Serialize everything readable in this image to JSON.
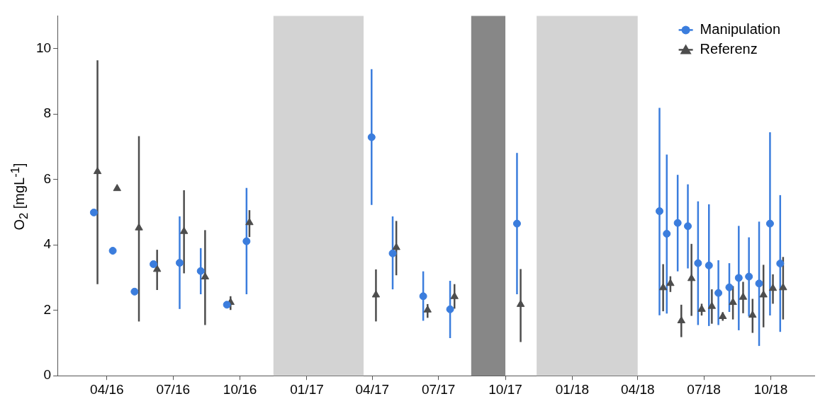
{
  "chart_data": {
    "type": "scatter",
    "ylabel": "O$_{2}$ [mgL$^{-1}$]",
    "xlim": [
      "2016-01-24",
      "2018-11-30"
    ],
    "ylim": [
      0,
      11
    ],
    "yticks": [
      0,
      2,
      4,
      6,
      8,
      10
    ],
    "xticks": [
      {
        "value": "2016-04-01",
        "label": "04/16"
      },
      {
        "value": "2016-07-01",
        "label": "07/16"
      },
      {
        "value": "2016-10-01",
        "label": "10/16"
      },
      {
        "value": "2017-01-01",
        "label": "01/17"
      },
      {
        "value": "2017-04-01",
        "label": "04/17"
      },
      {
        "value": "2017-07-01",
        "label": "07/17"
      },
      {
        "value": "2017-10-01",
        "label": "10/17"
      },
      {
        "value": "2018-01-01",
        "label": "01/18"
      },
      {
        "value": "2018-04-01",
        "label": "04/18"
      },
      {
        "value": "2018-07-01",
        "label": "07/18"
      },
      {
        "value": "2018-10-01",
        "label": "10/18"
      }
    ],
    "legend": "top right",
    "bands": [
      {
        "axis": "x",
        "from": "2016-11-16",
        "to": "2017-03-20",
        "color": "#d3d3d3"
      },
      {
        "axis": "x",
        "from": "2017-08-15",
        "to": "2017-10-01",
        "color": "#878787"
      },
      {
        "axis": "x",
        "from": "2017-11-13",
        "to": "2018-04-01",
        "color": "#d3d3d3"
      }
    ],
    "series": [
      {
        "name": "Manipulation",
        "color": "#3b7ddd",
        "marker": "circle",
        "x": [
          "2016-03-14",
          "2016-04-09",
          "2016-05-09",
          "2016-06-04",
          "2016-07-10",
          "2016-08-08",
          "2016-09-13",
          "2016-10-10",
          "2017-03-31",
          "2017-04-29",
          "2017-06-10",
          "2017-07-17",
          "2017-10-17",
          "2018-05-01",
          "2018-05-11",
          "2018-05-26",
          "2018-06-09",
          "2018-06-23",
          "2018-07-08",
          "2018-07-21",
          "2018-08-05",
          "2018-08-18",
          "2018-09-01",
          "2018-09-15",
          "2018-09-30",
          "2018-10-14"
        ],
        "values": [
          4.99,
          3.82,
          2.57,
          3.41,
          3.45,
          3.2,
          2.17,
          4.11,
          7.29,
          3.74,
          2.43,
          2.03,
          4.65,
          5.03,
          4.34,
          4.67,
          4.57,
          3.44,
          3.37,
          2.53,
          2.7,
          2.99,
          3.03,
          2.82,
          4.65,
          3.43
        ],
        "errors": [
          null,
          null,
          null,
          null,
          [
            2.04,
            4.87
          ],
          [
            2.49,
            3.9
          ],
          null,
          [
            2.49,
            5.74
          ],
          [
            5.22,
            9.37
          ],
          [
            2.64,
            4.87
          ],
          [
            1.68,
            3.19
          ],
          [
            1.15,
            2.9
          ],
          [
            2.49,
            6.81
          ],
          [
            1.85,
            8.19
          ],
          [
            1.9,
            6.76
          ],
          [
            3.19,
            6.14
          ],
          [
            3.28,
            5.85
          ],
          [
            1.55,
            5.33
          ],
          [
            1.52,
            5.24
          ],
          [
            1.55,
            3.53
          ],
          [
            1.95,
            3.44
          ],
          [
            1.39,
            4.58
          ],
          [
            1.81,
            4.23
          ],
          [
            0.91,
            4.71
          ],
          [
            1.84,
            7.44
          ],
          [
            1.34,
            5.52
          ]
        ]
      },
      {
        "name": "Referenz",
        "color": "#4d4d4d",
        "marker": "triangle",
        "x": [
          "2016-03-19",
          "2016-04-15",
          "2016-05-15",
          "2016-06-09",
          "2016-07-16",
          "2016-08-14",
          "2016-09-18",
          "2016-10-14",
          "2017-04-06",
          "2017-05-04",
          "2017-06-16",
          "2017-07-23",
          "2017-10-22",
          "2018-05-06",
          "2018-05-16",
          "2018-05-31",
          "2018-06-14",
          "2018-06-28",
          "2018-07-12",
          "2018-07-27",
          "2018-08-10",
          "2018-08-24",
          "2018-09-06",
          "2018-09-21",
          "2018-10-04",
          "2018-10-18"
        ],
        "values": [
          6.24,
          5.72,
          4.52,
          3.25,
          4.41,
          3.02,
          2.24,
          4.68,
          2.47,
          3.92,
          2.01,
          2.42,
          2.18,
          2.69,
          2.82,
          1.68,
          2.97,
          2.03,
          2.12,
          1.81,
          2.24,
          2.4,
          1.85,
          2.47,
          2.67,
          2.69
        ],
        "errors": [
          [
            2.8,
            9.64
          ],
          null,
          [
            1.66,
            7.32
          ],
          [
            2.62,
            3.85
          ],
          [
            3.13,
            5.67
          ],
          [
            1.55,
            4.45
          ],
          [
            2.01,
            2.43
          ],
          [
            4.24,
            5.06
          ],
          [
            1.66,
            3.25
          ],
          [
            3.07,
            4.73
          ],
          [
            1.77,
            2.19
          ],
          [
            2.05,
            2.8
          ],
          [
            1.03,
            3.26
          ],
          [
            1.97,
            3.41
          ],
          [
            2.56,
            3.04
          ],
          [
            1.18,
            2.17
          ],
          [
            1.83,
            4.03
          ],
          [
            1.84,
            2.2
          ],
          [
            1.59,
            2.64
          ],
          [
            1.68,
            1.94
          ],
          [
            1.72,
            2.74
          ],
          [
            1.91,
            2.87
          ],
          [
            1.31,
            2.35
          ],
          [
            1.48,
            3.39
          ],
          [
            2.2,
            3.1
          ],
          [
            1.72,
            3.63
          ]
        ]
      }
    ]
  }
}
